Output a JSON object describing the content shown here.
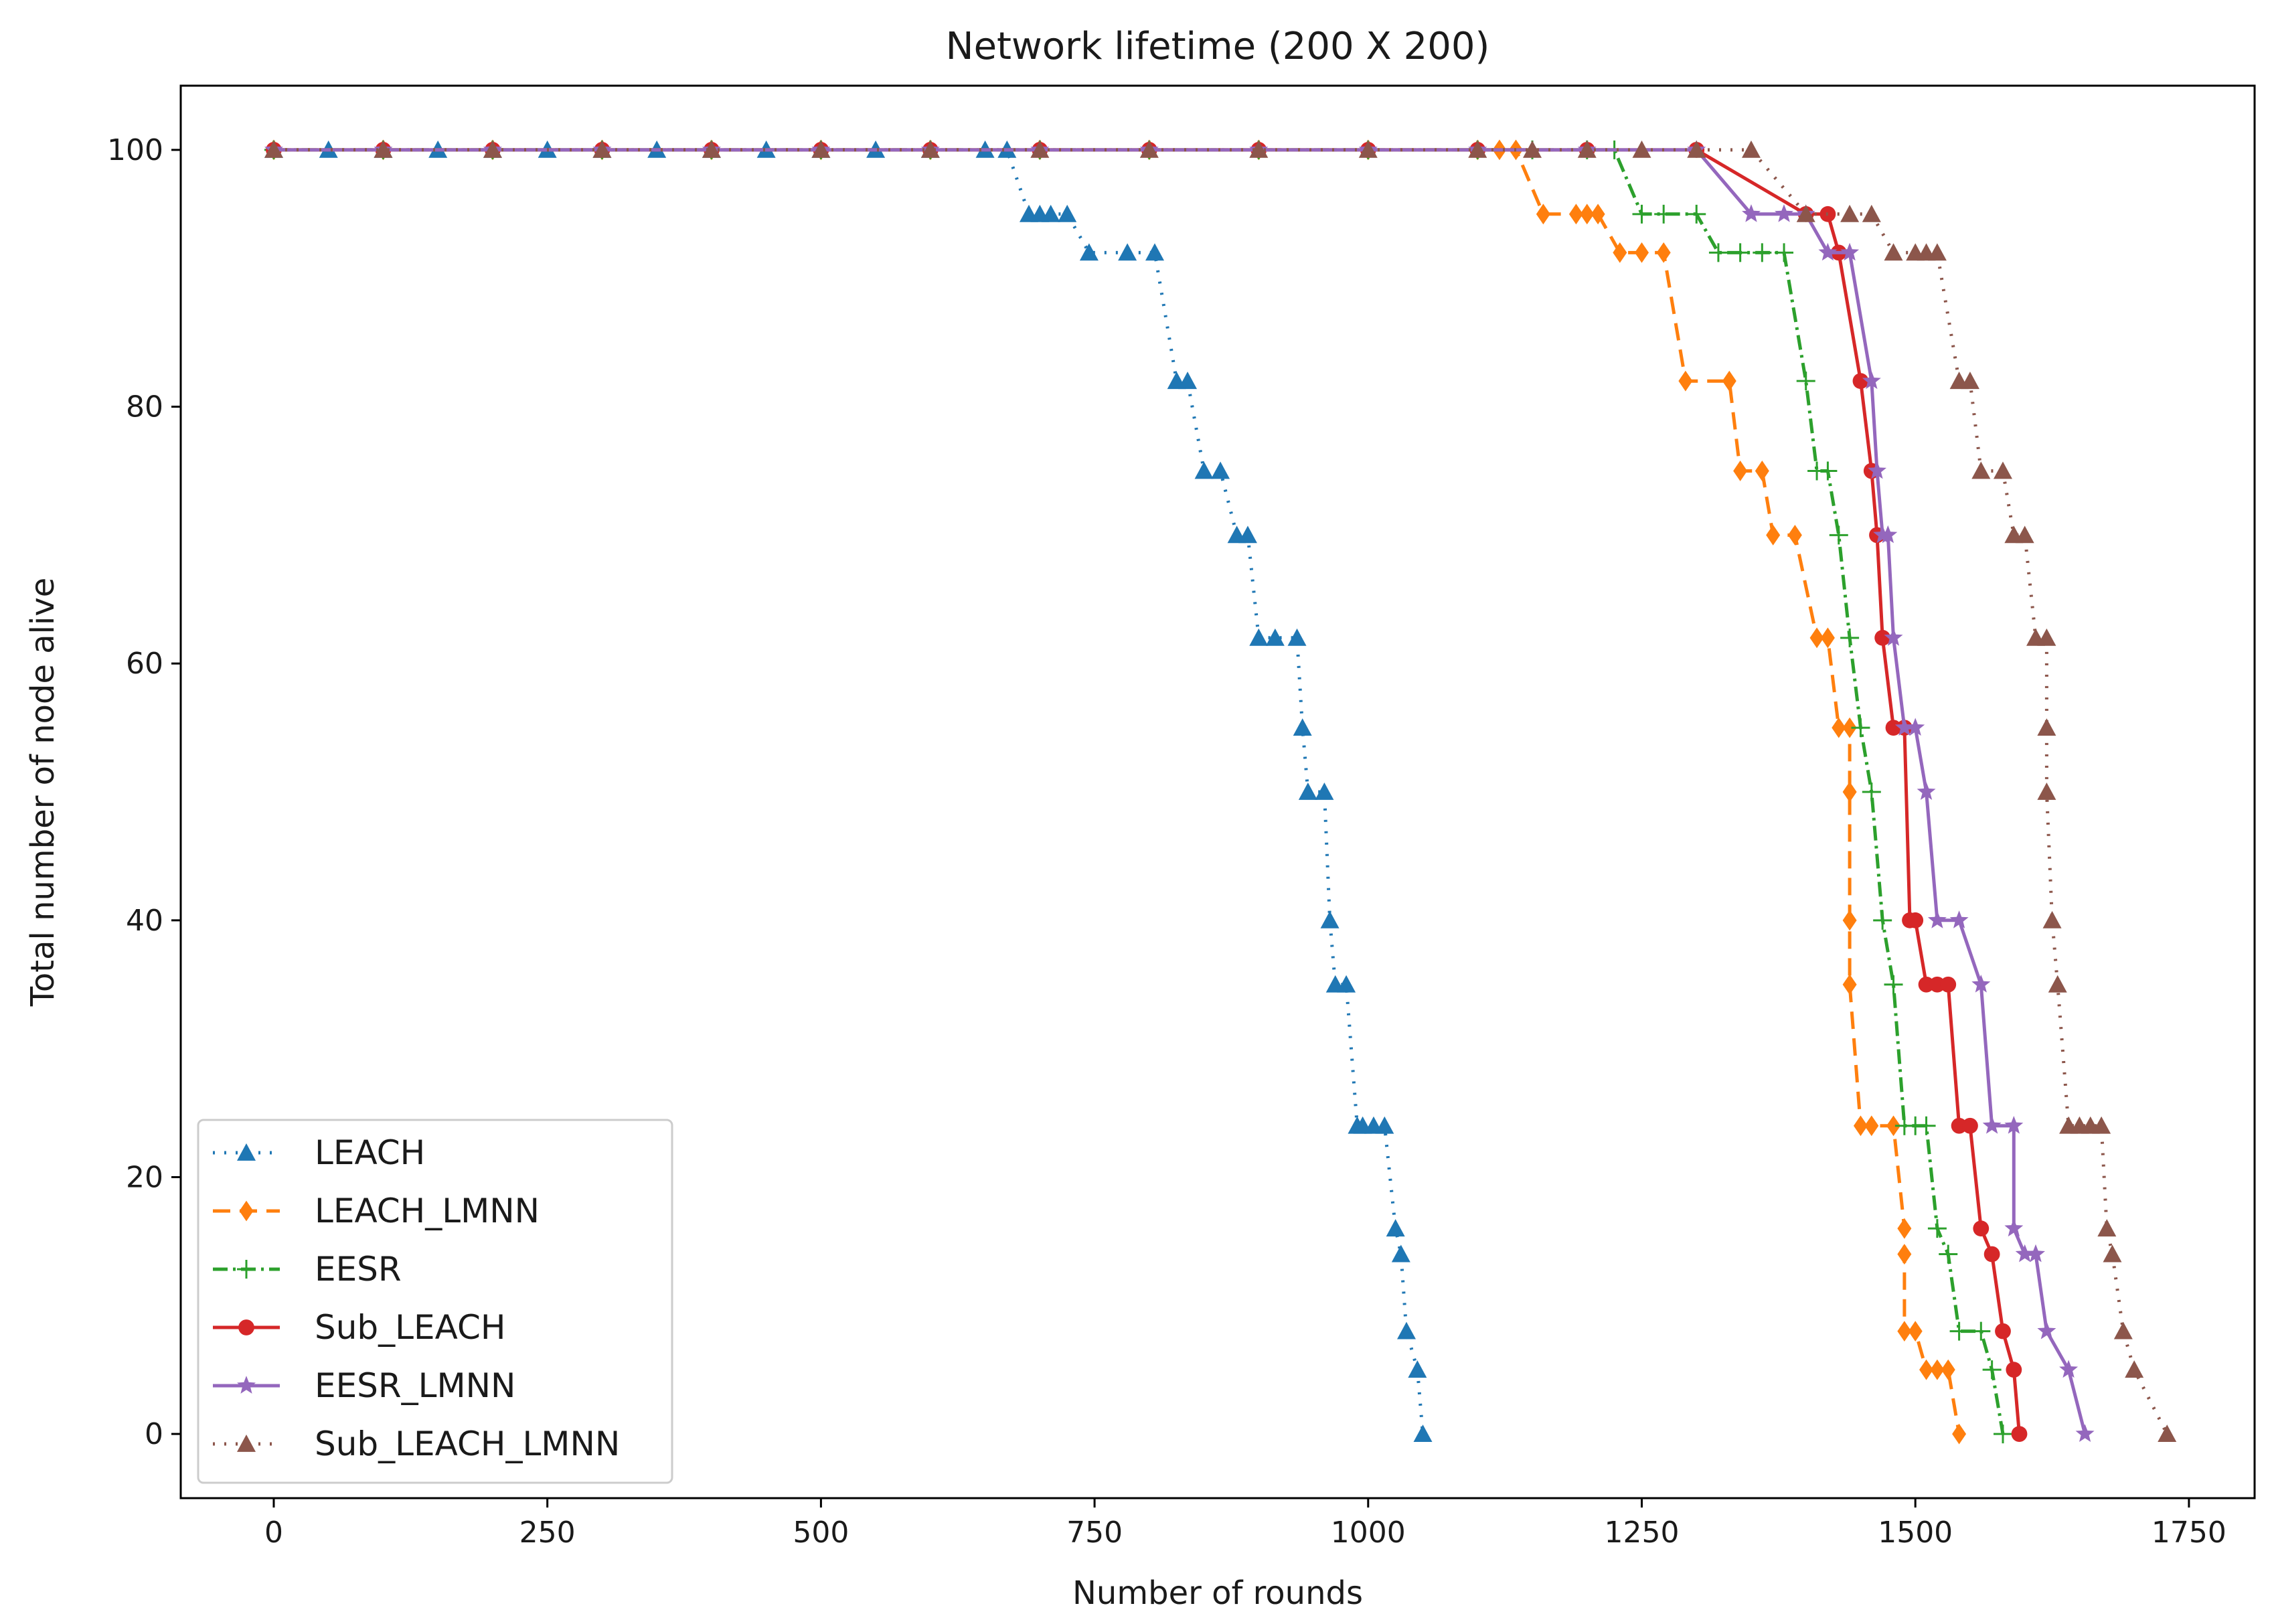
{
  "chart_data": {
    "type": "line",
    "title": "Network lifetime (200 X 200)",
    "xlabel": "Number of rounds",
    "ylabel": "Total number of node alive",
    "xlim": [
      -85,
      1810
    ],
    "ylim": [
      -5,
      105
    ],
    "xticks": [
      0,
      250,
      500,
      750,
      1000,
      1250,
      1500,
      1750
    ],
    "yticks": [
      0,
      20,
      40,
      60,
      80,
      100
    ],
    "legend_position": "lower-left",
    "series": [
      {
        "name": "LEACH",
        "color": "#1f77b4",
        "dash": "3,14",
        "marker": "triangle",
        "x": [
          0,
          50,
          100,
          150,
          200,
          250,
          300,
          350,
          400,
          450,
          500,
          550,
          600,
          650,
          670,
          690,
          700,
          710,
          725,
          745,
          780,
          805,
          825,
          835,
          850,
          865,
          880,
          890,
          900,
          915,
          935,
          940,
          945,
          960,
          965,
          970,
          980,
          990,
          995,
          1005,
          1015,
          1025,
          1030,
          1035,
          1045,
          1050
        ],
        "y": [
          100,
          100,
          100,
          100,
          100,
          100,
          100,
          100,
          100,
          100,
          100,
          100,
          100,
          100,
          100,
          95,
          95,
          95,
          95,
          92,
          92,
          92,
          82,
          82,
          75,
          75,
          70,
          70,
          62,
          62,
          62,
          55,
          50,
          50,
          40,
          35,
          35,
          24,
          24,
          24,
          24,
          16,
          14,
          8,
          5,
          0
        ]
      },
      {
        "name": "LEACH_LMNN",
        "color": "#ff7f0e",
        "dash": "26,14",
        "marker": "diamond",
        "x": [
          0,
          100,
          200,
          300,
          400,
          500,
          600,
          700,
          800,
          900,
          1000,
          1100,
          1120,
          1135,
          1160,
          1190,
          1200,
          1210,
          1230,
          1250,
          1270,
          1290,
          1330,
          1340,
          1360,
          1370,
          1390,
          1410,
          1420,
          1430,
          1440,
          1440,
          1440,
          1440,
          1450,
          1460,
          1480,
          1490,
          1490,
          1490,
          1500,
          1510,
          1520,
          1530,
          1540
        ],
        "y": [
          100,
          100,
          100,
          100,
          100,
          100,
          100,
          100,
          100,
          100,
          100,
          100,
          100,
          100,
          95,
          95,
          95,
          95,
          92,
          92,
          92,
          82,
          82,
          75,
          75,
          70,
          70,
          62,
          62,
          55,
          55,
          50,
          40,
          35,
          24,
          24,
          24,
          16,
          14,
          8,
          8,
          5,
          5,
          5,
          0
        ]
      },
      {
        "name": "EESR",
        "color": "#2ca02c",
        "dash": "22,8,4,8",
        "marker": "plus",
        "x": [
          0,
          100,
          200,
          300,
          400,
          500,
          600,
          700,
          800,
          900,
          1000,
          1100,
          1150,
          1200,
          1225,
          1250,
          1270,
          1300,
          1320,
          1340,
          1360,
          1380,
          1400,
          1410,
          1420,
          1430,
          1440,
          1450,
          1460,
          1470,
          1480,
          1490,
          1500,
          1510,
          1520,
          1530,
          1540,
          1560,
          1570,
          1580
        ],
        "y": [
          100,
          100,
          100,
          100,
          100,
          100,
          100,
          100,
          100,
          100,
          100,
          100,
          100,
          100,
          100,
          95,
          95,
          95,
          92,
          92,
          92,
          92,
          82,
          75,
          75,
          70,
          62,
          55,
          50,
          40,
          35,
          24,
          24,
          24,
          16,
          14,
          8,
          8,
          5,
          0
        ]
      },
      {
        "name": "Sub_LEACH",
        "color": "#d62728",
        "dash": "",
        "marker": "circle",
        "x": [
          0,
          100,
          200,
          300,
          400,
          500,
          600,
          700,
          800,
          900,
          1000,
          1100,
          1200,
          1300,
          1400,
          1420,
          1430,
          1450,
          1460,
          1465,
          1470,
          1480,
          1490,
          1495,
          1500,
          1510,
          1520,
          1530,
          1540,
          1550,
          1560,
          1570,
          1580,
          1590,
          1595
        ],
        "y": [
          100,
          100,
          100,
          100,
          100,
          100,
          100,
          100,
          100,
          100,
          100,
          100,
          100,
          100,
          95,
          95,
          92,
          82,
          75,
          70,
          62,
          55,
          55,
          40,
          40,
          35,
          35,
          35,
          24,
          24,
          16,
          14,
          8,
          5,
          0
        ]
      },
      {
        "name": "EESR_LMNN",
        "color": "#9467bd",
        "dash": "",
        "marker": "star",
        "x": [
          0,
          100,
          200,
          300,
          400,
          500,
          600,
          700,
          800,
          900,
          1000,
          1100,
          1200,
          1300,
          1350,
          1380,
          1400,
          1420,
          1440,
          1460,
          1465,
          1470,
          1475,
          1480,
          1490,
          1500,
          1510,
          1520,
          1540,
          1560,
          1570,
          1590,
          1590,
          1600,
          1610,
          1620,
          1640,
          1655
        ],
        "y": [
          100,
          100,
          100,
          100,
          100,
          100,
          100,
          100,
          100,
          100,
          100,
          100,
          100,
          100,
          95,
          95,
          95,
          92,
          92,
          82,
          75,
          70,
          70,
          62,
          55,
          55,
          50,
          40,
          40,
          35,
          24,
          24,
          16,
          14,
          14,
          8,
          5,
          0
        ]
      },
      {
        "name": "Sub_LEACH_LMNN",
        "color": "#8c564b",
        "dash": "3,14",
        "marker": "triangle",
        "x": [
          0,
          100,
          200,
          300,
          400,
          500,
          600,
          700,
          800,
          900,
          1000,
          1100,
          1150,
          1200,
          1250,
          1300,
          1350,
          1400,
          1440,
          1460,
          1480,
          1500,
          1510,
          1520,
          1540,
          1550,
          1560,
          1580,
          1590,
          1600,
          1610,
          1620,
          1620,
          1620,
          1625,
          1630,
          1640,
          1650,
          1660,
          1670,
          1675,
          1680,
          1690,
          1700,
          1730
        ],
        "y": [
          100,
          100,
          100,
          100,
          100,
          100,
          100,
          100,
          100,
          100,
          100,
          100,
          100,
          100,
          100,
          100,
          100,
          95,
          95,
          95,
          92,
          92,
          92,
          92,
          82,
          82,
          75,
          75,
          70,
          70,
          62,
          62,
          55,
          50,
          40,
          35,
          24,
          24,
          24,
          24,
          16,
          14,
          8,
          5,
          0
        ]
      }
    ]
  }
}
